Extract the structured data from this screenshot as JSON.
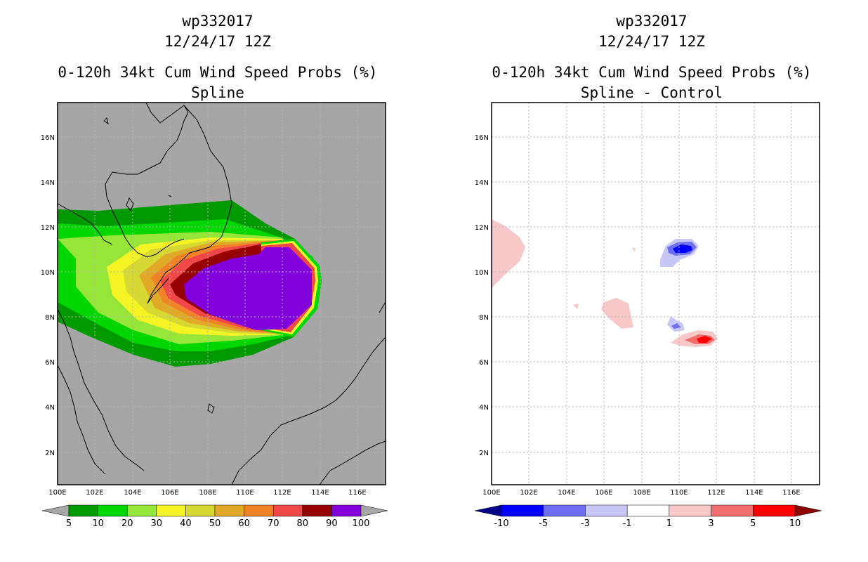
{
  "left_panel": {
    "title_storm": "wp332017",
    "title_date": "12/24/17 12Z",
    "title_product": "0-120h 34kt Cum Wind Speed Probs (%)",
    "title_method": "Spline"
  },
  "right_panel": {
    "title_storm": "wp332017",
    "title_date": "12/24/17 12Z",
    "title_product": "0-120h 34kt Cum Wind Speed Probs (%)",
    "title_method": "Spline - Control"
  },
  "map_axes": {
    "lon_labels": [
      "100E",
      "102E",
      "104E",
      "106E",
      "108E",
      "110E",
      "112E",
      "114E",
      "116E"
    ],
    "lat_labels": [
      "2N",
      "4N",
      "6N",
      "8N",
      "10N",
      "12N",
      "14N",
      "16N"
    ],
    "lon_range": [
      100,
      117.5
    ],
    "lat_range": [
      0.5,
      17.5
    ]
  },
  "left_colorbar": {
    "labels": [
      "5",
      "10",
      "20",
      "30",
      "40",
      "50",
      "60",
      "70",
      "80",
      "90",
      "100"
    ],
    "colors": [
      "#009a00",
      "#00d600",
      "#96e63a",
      "#f4f424",
      "#d8d832",
      "#e0aa28",
      "#f08228",
      "#f04848",
      "#960000",
      "#8200dc"
    ],
    "under_color": "#a6a6a6",
    "over_color": "#a6a6a6"
  },
  "right_colorbar": {
    "labels": [
      "-10",
      "-5",
      "-3",
      "-1",
      "1",
      "3",
      "5",
      "10"
    ],
    "colors": [
      "#0000ff",
      "#6e6ef0",
      "#c8c8f8",
      "#ffffff",
      "#f8c8c8",
      "#f06e6e",
      "#ff0000"
    ],
    "under_color": "#00008c",
    "over_color": "#8c0000"
  },
  "map_colors": {
    "left_background": "#a6a6a6",
    "right_background": "#ffffff",
    "gridline": "#b4b4b4",
    "coastline": "#000000"
  }
}
